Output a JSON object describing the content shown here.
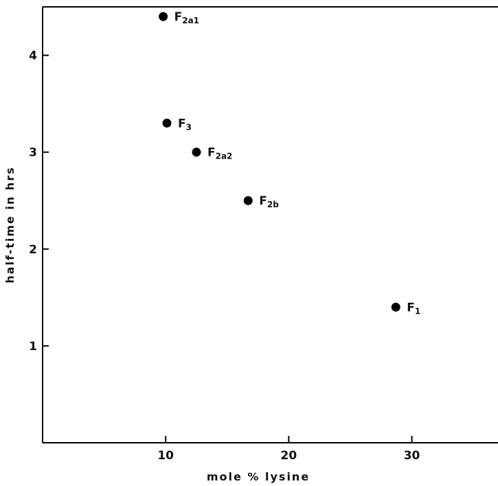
{
  "chart_data": {
    "type": "scatter",
    "xlabel": "mole % lysine",
    "ylabel": "half-time in hrs",
    "xlim": [
      0,
      37
    ],
    "ylim": [
      0,
      4.5
    ],
    "xticks": [
      10,
      20,
      30
    ],
    "yticks": [
      1,
      2,
      3,
      4
    ],
    "grid": false,
    "points": [
      {
        "label": "F",
        "sub": "2a1",
        "x": 9.8,
        "y": 4.4
      },
      {
        "label": "F",
        "sub": "3",
        "x": 10.1,
        "y": 3.3
      },
      {
        "label": "F",
        "sub": "2a2",
        "x": 12.5,
        "y": 3.0
      },
      {
        "label": "F",
        "sub": "2b",
        "x": 16.7,
        "y": 2.5
      },
      {
        "label": "F",
        "sub": "1",
        "x": 28.7,
        "y": 1.4
      }
    ],
    "marker_color": "#000000"
  }
}
